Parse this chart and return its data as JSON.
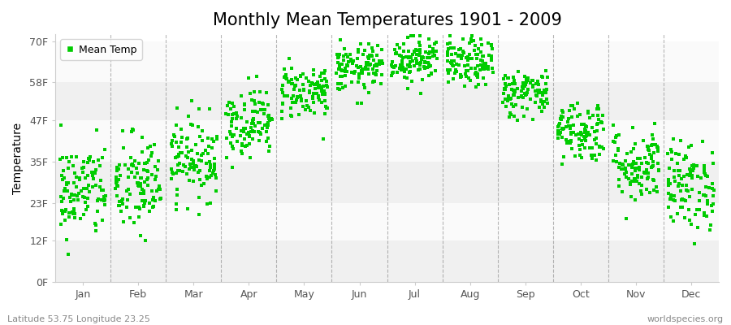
{
  "title": "Monthly Mean Temperatures 1901 - 2009",
  "ylabel": "Temperature",
  "yticks": [
    0,
    12,
    23,
    35,
    47,
    58,
    70
  ],
  "ytick_labels": [
    "0F",
    "12F",
    "23F",
    "35F",
    "47F",
    "58F",
    "70F"
  ],
  "ylim": [
    0,
    72
  ],
  "months": [
    "Jan",
    "Feb",
    "Mar",
    "Apr",
    "May",
    "Jun",
    "Jul",
    "Aug",
    "Sep",
    "Oct",
    "Nov",
    "Dec"
  ],
  "dot_color": "#00cc00",
  "background_color": "#ffffff",
  "legend_label": "Mean Temp",
  "footer_left": "Latitude 53.75 Longitude 23.25",
  "footer_right": "worldspecies.org",
  "n_years": 109,
  "monthly_mean_F": [
    26.5,
    28.0,
    36.0,
    46.5,
    55.5,
    62.0,
    65.0,
    63.5,
    55.0,
    44.0,
    34.0,
    28.0
  ],
  "monthly_std_F": [
    7.0,
    7.5,
    6.0,
    5.0,
    4.0,
    3.5,
    3.5,
    3.5,
    3.5,
    4.5,
    5.5,
    6.5
  ],
  "band_colors": [
    "#f0f0f0",
    "#fafafa"
  ],
  "title_fontsize": 15,
  "label_fontsize": 10,
  "tick_fontsize": 9,
  "footer_fontsize": 8,
  "dashed_line_color": "#888888"
}
